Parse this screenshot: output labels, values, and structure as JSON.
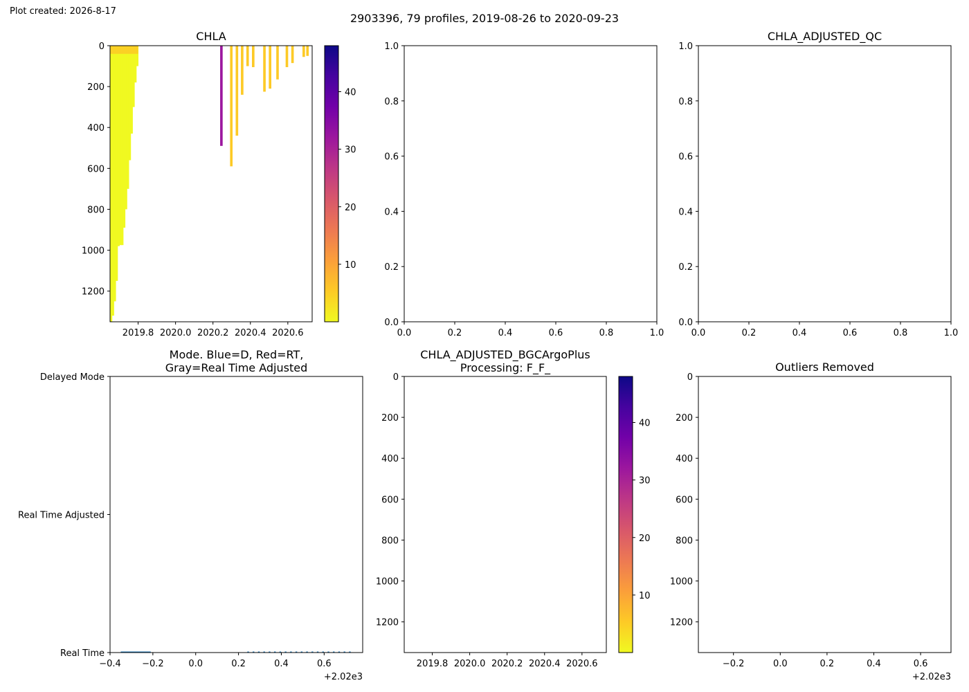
{
  "created": "Plot created: 2026-8-17",
  "suptitle": "2903396, 79 profiles, 2019-08-26 to 2020-09-23",
  "colormap": [
    "#f0f921",
    "#fdca26",
    "#fb9f3a",
    "#ed7953",
    "#d8576b",
    "#bd3786",
    "#9c179e",
    "#7201a8",
    "#46039f",
    "#0d0887"
  ],
  "chart_data": [
    {
      "id": "chla",
      "type": "heatmap",
      "title": "CHLA",
      "xlim": [
        2019.65,
        2020.73
      ],
      "ylim": [
        1350,
        0
      ],
      "yinvert": true,
      "x_ticks": [
        {
          "v": 2019.8,
          "label": "2019.8"
        },
        {
          "v": 2020.0,
          "label": "2020.0"
        },
        {
          "v": 2020.2,
          "label": "2020.2"
        },
        {
          "v": 2020.4,
          "label": "2020.4"
        },
        {
          "v": 2020.6,
          "label": "2020.6"
        }
      ],
      "y_ticks": [
        {
          "v": 0,
          "label": "0"
        },
        {
          "v": 200,
          "label": "200"
        },
        {
          "v": 400,
          "label": "400"
        },
        {
          "v": 600,
          "label": "600"
        },
        {
          "v": 800,
          "label": "800"
        },
        {
          "v": 1000,
          "label": "1000"
        },
        {
          "v": 1200,
          "label": "1200"
        }
      ],
      "colorbar": {
        "range": [
          0,
          48
        ],
        "ticks": [
          {
            "v": 10,
            "label": "10"
          },
          {
            "v": 20,
            "label": "20"
          },
          {
            "v": 30,
            "label": "30"
          },
          {
            "v": 40,
            "label": "40"
          }
        ]
      },
      "profiles": [
        {
          "x": 2019.655,
          "depth": 1350,
          "value": 1
        },
        {
          "x": 2019.665,
          "depth": 1320,
          "value": 1
        },
        {
          "x": 2019.675,
          "depth": 1250,
          "value": 1
        },
        {
          "x": 2019.685,
          "depth": 1150,
          "value": 1
        },
        {
          "x": 2019.695,
          "depth": 980,
          "value": 1
        },
        {
          "x": 2019.705,
          "depth": 975,
          "value": 1
        },
        {
          "x": 2019.715,
          "depth": 975,
          "value": 1
        },
        {
          "x": 2019.725,
          "depth": 890,
          "value": 1
        },
        {
          "x": 2019.735,
          "depth": 800,
          "value": 1
        },
        {
          "x": 2019.745,
          "depth": 700,
          "value": 1
        },
        {
          "x": 2019.755,
          "depth": 560,
          "value": 1
        },
        {
          "x": 2019.765,
          "depth": 430,
          "value": 1
        },
        {
          "x": 2019.775,
          "depth": 300,
          "value": 1
        },
        {
          "x": 2019.785,
          "depth": 180,
          "value": 1
        },
        {
          "x": 2019.795,
          "depth": 100,
          "value": 1
        },
        {
          "x": 2020.245,
          "depth": 490,
          "value": 33
        },
        {
          "x": 2020.298,
          "depth": 590,
          "value": 6
        },
        {
          "x": 2020.328,
          "depth": 440,
          "value": 4
        },
        {
          "x": 2020.356,
          "depth": 240,
          "value": 4
        },
        {
          "x": 2020.385,
          "depth": 100,
          "value": 4
        },
        {
          "x": 2020.415,
          "depth": 105,
          "value": 4
        },
        {
          "x": 2020.475,
          "depth": 225,
          "value": 4
        },
        {
          "x": 2020.505,
          "depth": 210,
          "value": 4
        },
        {
          "x": 2020.545,
          "depth": 165,
          "value": 4
        },
        {
          "x": 2020.595,
          "depth": 105,
          "value": 4
        },
        {
          "x": 2020.625,
          "depth": 85,
          "value": 4
        },
        {
          "x": 2020.685,
          "depth": 55,
          "value": 4
        },
        {
          "x": 2020.705,
          "depth": 50,
          "value": 4
        }
      ],
      "surface_layer": {
        "x": [
          2019.65,
          2019.8
        ],
        "depth": 40,
        "value": 5
      }
    },
    {
      "id": "empty1",
      "type": "line",
      "title": "",
      "xlim": [
        0,
        1
      ],
      "ylim": [
        0,
        1
      ],
      "x_ticks": [
        {
          "v": 0,
          "label": "0.0"
        },
        {
          "v": 0.2,
          "label": "0.2"
        },
        {
          "v": 0.4,
          "label": "0.4"
        },
        {
          "v": 0.6,
          "label": "0.6"
        },
        {
          "v": 0.8,
          "label": "0.8"
        },
        {
          "v": 1,
          "label": "1.0"
        }
      ],
      "y_ticks": [
        {
          "v": 0,
          "label": "0.0"
        },
        {
          "v": 0.2,
          "label": "0.2"
        },
        {
          "v": 0.4,
          "label": "0.4"
        },
        {
          "v": 0.6,
          "label": "0.6"
        },
        {
          "v": 0.8,
          "label": "0.8"
        },
        {
          "v": 1,
          "label": "1.0"
        }
      ]
    },
    {
      "id": "adjqc",
      "type": "line",
      "title": "CHLA_ADJUSTED_QC",
      "xlim": [
        0,
        1
      ],
      "ylim": [
        0,
        1
      ],
      "x_ticks": [
        {
          "v": 0,
          "label": "0.0"
        },
        {
          "v": 0.2,
          "label": "0.2"
        },
        {
          "v": 0.4,
          "label": "0.4"
        },
        {
          "v": 0.6,
          "label": "0.6"
        },
        {
          "v": 0.8,
          "label": "0.8"
        },
        {
          "v": 1,
          "label": "1.0"
        }
      ],
      "y_ticks": [
        {
          "v": 0,
          "label": "0.0"
        },
        {
          "v": 0.2,
          "label": "0.2"
        },
        {
          "v": 0.4,
          "label": "0.4"
        },
        {
          "v": 0.6,
          "label": "0.6"
        },
        {
          "v": 0.8,
          "label": "0.8"
        },
        {
          "v": 1,
          "label": "1.0"
        }
      ]
    },
    {
      "id": "mode",
      "type": "scatter",
      "title": [
        "Mode. Blue=D, Red=RT,",
        "Gray=Real Time Adjusted"
      ],
      "xlim": [
        -0.4,
        0.78
      ],
      "ylim": [
        0,
        2
      ],
      "x_ticks": [
        {
          "v": -0.4,
          "label": "−0.4"
        },
        {
          "v": -0.2,
          "label": "−0.2"
        },
        {
          "v": 0,
          "label": "0.0"
        },
        {
          "v": 0.2,
          "label": "0.2"
        },
        {
          "v": 0.4,
          "label": "0.4"
        },
        {
          "v": 0.6,
          "label": "0.6"
        }
      ],
      "x_offset_label": "+2.02e3",
      "y_ticks": [
        {
          "v": 0,
          "label": "Real Time"
        },
        {
          "v": 1,
          "label": "Real Time Adjusted"
        },
        {
          "v": 2,
          "label": "Delayed Mode"
        }
      ],
      "segment": {
        "x0": -0.35,
        "x1": -0.21,
        "y": 0
      },
      "points": [
        0.245,
        0.27,
        0.295,
        0.32,
        0.345,
        0.37,
        0.395,
        0.42,
        0.445,
        0.47,
        0.495,
        0.52,
        0.545,
        0.57,
        0.595,
        0.62,
        0.645,
        0.67,
        0.695,
        0.72
      ],
      "points_y": 0,
      "color": "#1f77b4"
    },
    {
      "id": "bgc",
      "type": "heatmap",
      "title": [
        "CHLA_ADJUSTED_BGCArgoPlus",
        "Processing: F_F_"
      ],
      "xlim": [
        2019.65,
        2020.73
      ],
      "ylim": [
        1350,
        0
      ],
      "yinvert": true,
      "x_ticks": [
        {
          "v": 2019.8,
          "label": "2019.8"
        },
        {
          "v": 2020.0,
          "label": "2020.0"
        },
        {
          "v": 2020.2,
          "label": "2020.2"
        },
        {
          "v": 2020.4,
          "label": "2020.4"
        },
        {
          "v": 2020.6,
          "label": "2020.6"
        }
      ],
      "y_ticks": [
        {
          "v": 0,
          "label": "0"
        },
        {
          "v": 200,
          "label": "200"
        },
        {
          "v": 400,
          "label": "400"
        },
        {
          "v": 600,
          "label": "600"
        },
        {
          "v": 800,
          "label": "800"
        },
        {
          "v": 1000,
          "label": "1000"
        },
        {
          "v": 1200,
          "label": "1200"
        }
      ],
      "colorbar": {
        "range": [
          0,
          48
        ],
        "ticks": [
          {
            "v": 10,
            "label": "10"
          },
          {
            "v": 20,
            "label": "20"
          },
          {
            "v": 30,
            "label": "30"
          },
          {
            "v": 40,
            "label": "40"
          }
        ]
      }
    },
    {
      "id": "outliers",
      "type": "line",
      "title": "Outliers Removed",
      "xlim": [
        -0.35,
        0.73
      ],
      "ylim": [
        1350,
        0
      ],
      "yinvert": true,
      "x_ticks": [
        {
          "v": -0.2,
          "label": "−0.2"
        },
        {
          "v": 0,
          "label": "0.0"
        },
        {
          "v": 0.2,
          "label": "0.2"
        },
        {
          "v": 0.4,
          "label": "0.4"
        },
        {
          "v": 0.6,
          "label": "0.6"
        }
      ],
      "x_offset_label": "+2.02e3",
      "y_ticks": [
        {
          "v": 0,
          "label": "0"
        },
        {
          "v": 200,
          "label": "200"
        },
        {
          "v": 400,
          "label": "400"
        },
        {
          "v": 600,
          "label": "600"
        },
        {
          "v": 800,
          "label": "800"
        },
        {
          "v": 1000,
          "label": "1000"
        },
        {
          "v": 1200,
          "label": "1200"
        }
      ]
    }
  ]
}
